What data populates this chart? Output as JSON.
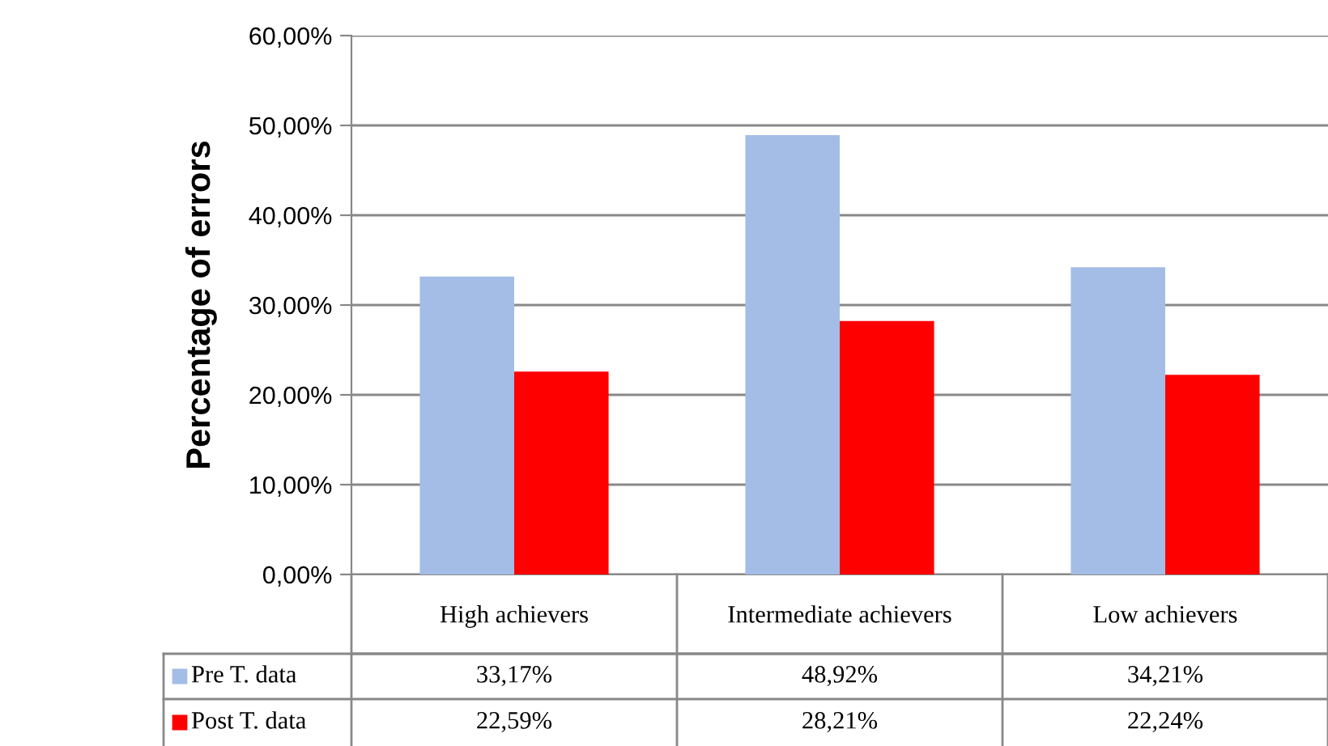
{
  "chart_data": {
    "type": "bar",
    "ylabel": "Percentage of errors",
    "categories": [
      "High achievers",
      "Intermediate achievers",
      "Low achievers"
    ],
    "series": [
      {
        "name": "Pre T. data",
        "color": "#a4bde6",
        "values": [
          33.17,
          48.92,
          34.21
        ],
        "value_labels": [
          "33,17%",
          "48,92%",
          "34,21%"
        ]
      },
      {
        "name": "Post T. data",
        "color": "#ff0000",
        "values": [
          22.59,
          28.21,
          22.24
        ],
        "value_labels": [
          "22,59%",
          "28,21%",
          "22,24%"
        ]
      }
    ],
    "ylim": [
      0,
      60
    ],
    "yticks": [
      {
        "value": 0,
        "label": "0,00%"
      },
      {
        "value": 10,
        "label": "10,00%"
      },
      {
        "value": 20,
        "label": "20,00%"
      },
      {
        "value": 30,
        "label": "30,00%"
      },
      {
        "value": 40,
        "label": "40,00%"
      },
      {
        "value": 50,
        "label": "50,00%"
      },
      {
        "value": 60,
        "label": "60,00%"
      }
    ],
    "grid": "y",
    "legend": "bottom"
  }
}
